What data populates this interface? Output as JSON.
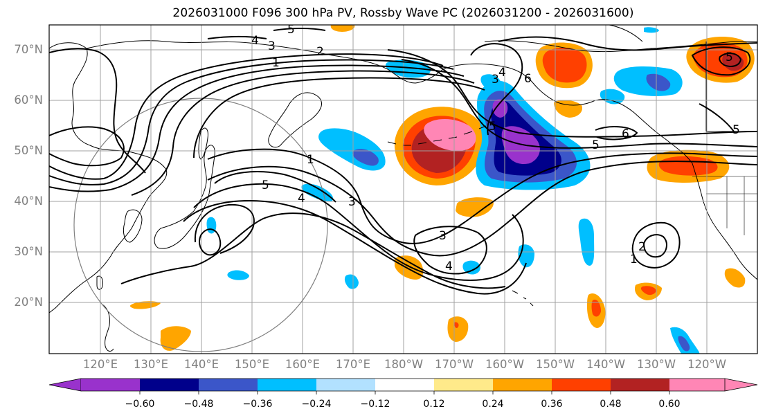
{
  "title": "2026031000 F096 300 hPa PV, Rossby Wave PC (2026031200 - 2026031600)",
  "lat_labels": [
    "70°N",
    "60°N",
    "50°N",
    "40°N",
    "30°N",
    "20°N"
  ],
  "lon_labels": [
    "120°E",
    "130°E",
    "140°E",
    "150°E",
    "160°E",
    "170°E",
    "180°W",
    "170°W",
    "160°W",
    "150°W",
    "140°W",
    "130°W",
    "120°W"
  ],
  "contour_labels": [
    "1",
    "2",
    "3",
    "4",
    "5",
    "5",
    "1",
    "5",
    "4",
    "3",
    "3",
    "4",
    "6",
    "6",
    "5",
    "5",
    "1",
    "2",
    "3",
    "4",
    "5"
  ],
  "colorbar": {
    "colors": [
      "#9932cc",
      "#00008b",
      "#3b56c9",
      "#00bfff",
      "#b2e1ff",
      "#ffffff",
      "#ffea8a",
      "#ffa500",
      "#ff4000",
      "#b22222",
      "#ff86b5"
    ],
    "tick_labels": [
      "−0.60",
      "−0.48",
      "−0.36",
      "−0.24",
      "−0.12",
      "0.12",
      "0.24",
      "0.36",
      "0.48",
      "0.60"
    ]
  }
}
